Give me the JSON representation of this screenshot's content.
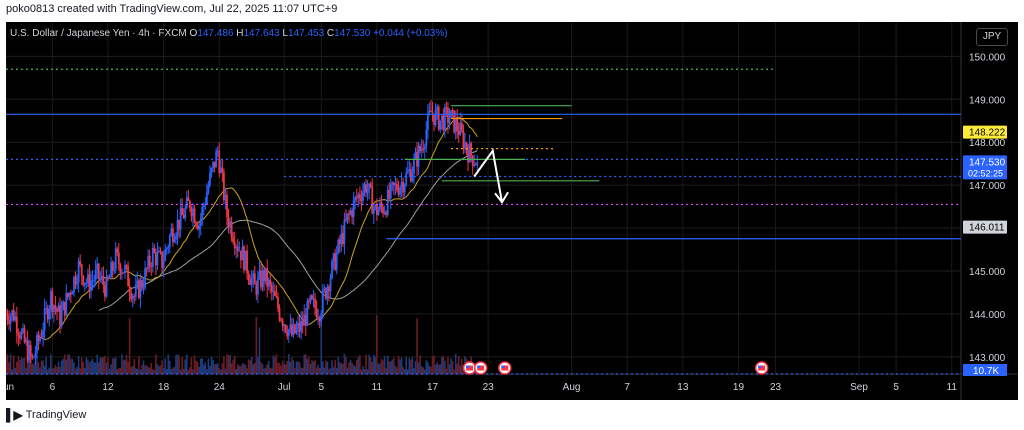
{
  "header": {
    "caption": "poko0813 created with TradingView.com, Jul 22, 2025 11:07 UTC+9"
  },
  "legend": {
    "symbol": "U.S. Dollar / Japanese Yen · 4h · FXCM",
    "o_label": "O",
    "o": "147.486",
    "h_label": "H",
    "h": "147.643",
    "l_label": "L",
    "l": "147.453",
    "c_label": "C",
    "c": "147.530",
    "change": "+0.044 (+0.03%)"
  },
  "currency_button": "JPY",
  "footer": {
    "brand": "TradingView"
  },
  "colors": {
    "up": "#2962ff",
    "down": "#f23645",
    "ma_fast": "#c9a227",
    "ma_slow": "#9e9e9e",
    "blue_line": "#2962ff",
    "green": "#4caf50",
    "orange": "#ff9800",
    "magenta": "#e040fb"
  },
  "chart_data": {
    "type": "candlestick",
    "interval": "4h",
    "ylim": [
      142.6,
      150.8
    ],
    "y_ticks": [
      {
        "value": 150.0,
        "label": "150.000"
      },
      {
        "value": 149.0,
        "label": "149.000"
      },
      {
        "value": 148.0,
        "label": "148.000"
      },
      {
        "value": 147.0,
        "label": "147.000"
      },
      {
        "value": 146.0,
        "label": "146.000"
      },
      {
        "value": 145.0,
        "label": "145.000"
      },
      {
        "value": 144.0,
        "label": "144.000"
      },
      {
        "value": 143.0,
        "label": "143.000"
      }
    ],
    "x_days": [
      {
        "label": "Jun",
        "day": 1
      },
      {
        "label": "6",
        "day": 6
      },
      {
        "label": "12",
        "day": 12
      },
      {
        "label": "18",
        "day": 18
      },
      {
        "label": "24",
        "day": 24
      },
      {
        "label": "Jul",
        "day": 31
      },
      {
        "label": "5",
        "day": 35
      },
      {
        "label": "11",
        "day": 41
      },
      {
        "label": "17",
        "day": 47
      },
      {
        "label": "23",
        "day": 53
      },
      {
        "label": "Aug",
        "day": 62
      },
      {
        "label": "7",
        "day": 68
      },
      {
        "label": "13",
        "day": 74
      },
      {
        "label": "19",
        "day": 80
      },
      {
        "label": "23",
        "day": 84
      },
      {
        "label": "Sep",
        "day": 93
      },
      {
        "label": "5",
        "day": 97
      },
      {
        "label": "11",
        "day": 103
      }
    ],
    "x_range_days": [
      1,
      104
    ],
    "closes_daily": [
      144.0,
      143.4,
      142.9,
      143.6,
      144.4,
      143.9,
      144.5,
      145.1,
      144.7,
      144.9,
      144.6,
      145.3,
      145.0,
      144.4,
      144.8,
      145.4,
      145.2,
      145.9,
      146.2,
      146.6,
      146.1,
      147.0,
      147.8,
      146.3,
      145.7,
      145.2,
      144.6,
      144.9,
      144.4,
      143.9,
      143.5,
      143.7,
      144.2,
      144.1,
      144.8,
      145.5,
      146.2,
      146.7,
      147.0,
      146.4,
      146.5,
      146.9,
      147.1,
      147.4,
      147.9,
      148.7,
      148.5,
      148.6,
      148.3,
      147.8,
      147.53
    ],
    "price_labels": [
      {
        "value": 148.222,
        "label": "148.222",
        "style": "yellow"
      },
      {
        "value": 147.53,
        "label": "147.530",
        "sub": "02:52:25",
        "style": "blue"
      },
      {
        "value": 146.011,
        "label": "146.011",
        "style": "gray"
      }
    ],
    "volume_label": "10.7K",
    "levels": [
      {
        "value": 149.7,
        "from_day": 1,
        "to_day": 84,
        "color": "#4caf50",
        "dash": "2,3"
      },
      {
        "value": 148.65,
        "from_day": 1,
        "to_day": 104,
        "color": "#2962ff",
        "dash": ""
      },
      {
        "value": 147.6,
        "from_day": 1,
        "to_day": 104,
        "color": "#2962ff",
        "dash": "2,3"
      },
      {
        "value": 147.2,
        "from_day": 31,
        "to_day": 104,
        "color": "#2962ff",
        "dash": "2,3"
      },
      {
        "value": 146.55,
        "from_day": 1,
        "to_day": 104,
        "color": "#e040fb",
        "dash": "2,3"
      },
      {
        "value": 145.75,
        "from_day": 42,
        "to_day": 104,
        "color": "#2962ff",
        "dash": ""
      },
      {
        "value": 142.6,
        "from_day": 1,
        "to_day": 104,
        "color": "#2962ff",
        "dash": "2,3"
      },
      {
        "value": 148.85,
        "from_day": 49,
        "to_day": 62,
        "color": "#4caf50",
        "dash": ""
      },
      {
        "value": 148.55,
        "from_day": 49,
        "to_day": 61,
        "color": "#ff9800",
        "dash": ""
      },
      {
        "value": 147.85,
        "from_day": 49,
        "to_day": 60,
        "color": "#ff9800",
        "dash": "2,3"
      },
      {
        "value": 147.6,
        "from_day": 44,
        "to_day": 57,
        "color": "#4caf50",
        "dash": ""
      },
      {
        "value": 147.1,
        "from_day": 48,
        "to_day": 65,
        "color": "#4caf50",
        "dash": ""
      }
    ],
    "arrow": [
      {
        "day": 51.5,
        "value": 147.2
      },
      {
        "day": 53.5,
        "value": 147.8
      },
      {
        "day": 54.5,
        "value": 146.6
      }
    ],
    "events_days": [
      51,
      52.2,
      54.8,
      82.5
    ]
  }
}
